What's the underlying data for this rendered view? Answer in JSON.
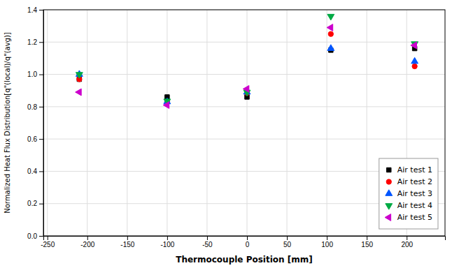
{
  "chart_data": {
    "type": "scatter",
    "xlabel": "Thermocouple Position [mm]",
    "ylabel": "Normalized Heat Flux Distribution[q\"(local)/q\"(avg)]",
    "x": [
      -210,
      -100,
      0,
      105,
      210
    ],
    "series": [
      {
        "name": "Air test 1",
        "color": "#000000",
        "marker": "square",
        "values": [
          0.97,
          0.86,
          0.86,
          1.15,
          1.16
        ]
      },
      {
        "name": "Air test 2",
        "color": "#ff0000",
        "marker": "circle",
        "values": [
          0.97,
          0.83,
          0.885,
          1.25,
          1.05
        ]
      },
      {
        "name": "Air test 3",
        "color": "#0055ff",
        "marker": "triangle-up",
        "values": [
          1.0,
          0.83,
          0.89,
          1.16,
          1.08
        ]
      },
      {
        "name": "Air test 4",
        "color": "#00aa44",
        "marker": "triangle-down",
        "values": [
          1.0,
          0.835,
          0.89,
          1.36,
          1.19
        ]
      },
      {
        "name": "Air test 5",
        "color": "#cc00cc",
        "marker": "triangle-left",
        "values": [
          0.89,
          0.81,
          0.91,
          1.29,
          1.18
        ]
      }
    ],
    "xlim": [
      -255,
      248
    ],
    "ylim": [
      0.0,
      1.4
    ],
    "xticks": [
      -250,
      -200,
      -150,
      -100,
      -50,
      0,
      50,
      100,
      150,
      200
    ],
    "yticks": [
      {
        "value": 0.0,
        "label": "0.0"
      },
      0.2,
      0.4,
      0.6,
      0.8,
      {
        "value": 1.0,
        "label": "1.0"
      },
      1.2,
      1.4
    ],
    "grid": true,
    "legend": "lower right"
  }
}
